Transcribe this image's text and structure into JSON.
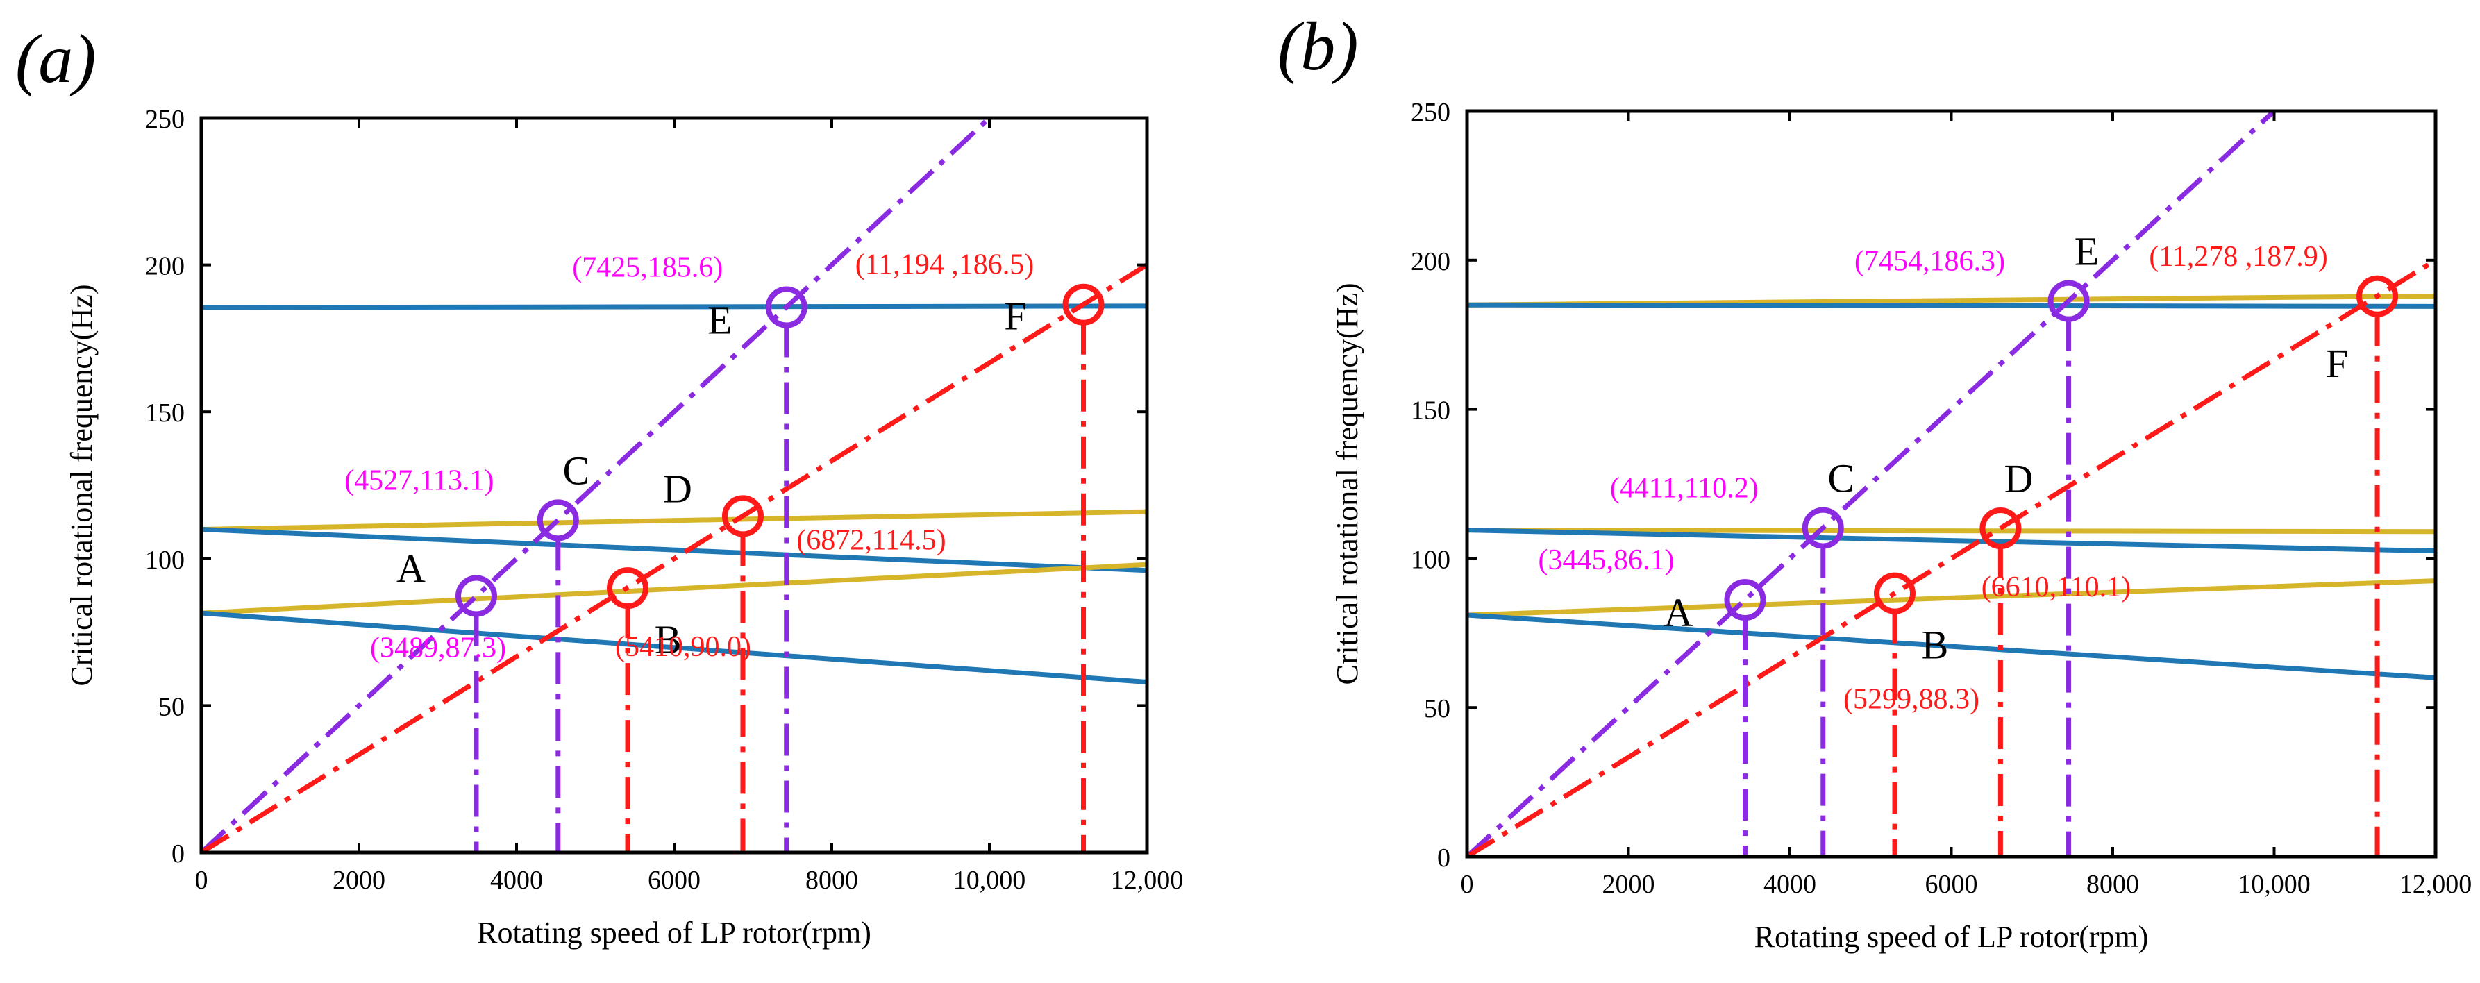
{
  "colors": {
    "blue": "#1f77b4",
    "gold": "#d6b52a",
    "purple": "#8a2be2",
    "red": "#ff1a1a",
    "magenta": "#ff00ff",
    "axis": "#000000"
  },
  "chart_data": [
    {
      "panel_label": "(a)",
      "type": "line",
      "xlabel": "Rotating speed of LP rotor(rpm)",
      "ylabel": "Critical rotational frequency(Hz)",
      "xlim": [
        0,
        12000
      ],
      "ylim": [
        0,
        250
      ],
      "xticks": [
        0,
        2000,
        4000,
        6000,
        8000,
        10000,
        12000
      ],
      "xtick_labels": [
        "0",
        "2000",
        "4000",
        "6000",
        "8000",
        "10,000",
        "12,000"
      ],
      "yticks": [
        0,
        50,
        100,
        150,
        200,
        250
      ],
      "ytick_labels": [
        "0",
        "50",
        "100",
        "150",
        "200",
        "250"
      ],
      "grid": false,
      "series": [
        {
          "color": "blue",
          "style": "solid",
          "x": [
            0,
            12000
          ],
          "y": [
            185.5,
            186.0
          ]
        },
        {
          "color": "gold",
          "style": "solid",
          "x": [
            0,
            12000
          ],
          "y": [
            110.0,
            116.0
          ]
        },
        {
          "color": "blue",
          "style": "solid",
          "x": [
            0,
            12000
          ],
          "y": [
            110.0,
            96.0
          ]
        },
        {
          "color": "gold",
          "style": "solid",
          "x": [
            0,
            12000
          ],
          "y": [
            81.5,
            98.0
          ]
        },
        {
          "color": "blue",
          "style": "solid",
          "x": [
            0,
            12000
          ],
          "y": [
            81.5,
            58.0
          ]
        },
        {
          "color": "purple",
          "style": "dashdot",
          "x": [
            0,
            10000
          ],
          "y": [
            0,
            250
          ]
        },
        {
          "color": "red",
          "style": "dashdot",
          "x": [
            0,
            12000
          ],
          "y": [
            0,
            200
          ]
        }
      ],
      "points": [
        {
          "letter": "A",
          "x": 3489,
          "y": 87.3,
          "ring": "purple",
          "text": "(3489,87.3)",
          "text_color": "magenta",
          "letter_pos": "upper-left",
          "text_pos": "below-left"
        },
        {
          "letter": "B",
          "x": 5410,
          "y": 90.0,
          "ring": "red",
          "text": "(5410,90.0)",
          "text_color": "red",
          "letter_pos": "lower-right",
          "text_pos": "below-right"
        },
        {
          "letter": "C",
          "x": 4527,
          "y": 113.1,
          "ring": "purple",
          "text": "(4527,113.1)",
          "text_color": "magenta",
          "letter_pos": "above",
          "text_pos": "upper-left"
        },
        {
          "letter": "D",
          "x": 6872,
          "y": 114.5,
          "ring": "red",
          "text": "(6872,114.5)",
          "text_color": "red",
          "letter_pos": "upper-left",
          "text_pos": "lower-right"
        },
        {
          "letter": "E",
          "x": 7425,
          "y": 185.6,
          "ring": "purple",
          "text": "(7425,185.6)",
          "text_color": "magenta",
          "letter_pos": "lower-left",
          "text_pos": "upper-left"
        },
        {
          "letter": "F",
          "x": 11194,
          "y": 186.5,
          "ring": "red",
          "text": "(11,194 ,186.5)",
          "text_color": "red",
          "letter_pos": "left",
          "text_pos": "upper-left"
        }
      ]
    },
    {
      "panel_label": "(b)",
      "type": "line",
      "xlabel": "Rotating speed of LP rotor(rpm)",
      "ylabel": "Critical rotational frequency(Hz)",
      "xlim": [
        0,
        12000
      ],
      "ylim": [
        0,
        250
      ],
      "xticks": [
        0,
        2000,
        4000,
        6000,
        8000,
        10000,
        12000
      ],
      "xtick_labels": [
        "0",
        "2000",
        "4000",
        "6000",
        "8000",
        "10,000",
        "12,000"
      ],
      "yticks": [
        0,
        50,
        100,
        150,
        200,
        250
      ],
      "ytick_labels": [
        "0",
        "50",
        "100",
        "150",
        "200",
        "250"
      ],
      "grid": false,
      "series": [
        {
          "color": "gold",
          "style": "solid",
          "x": [
            0,
            12000
          ],
          "y": [
            185.0,
            188.0
          ]
        },
        {
          "color": "blue",
          "style": "solid",
          "x": [
            0,
            12000
          ],
          "y": [
            185.0,
            184.5
          ]
        },
        {
          "color": "gold",
          "style": "solid",
          "x": [
            0,
            12000
          ],
          "y": [
            109.5,
            109.0
          ]
        },
        {
          "color": "blue",
          "style": "solid",
          "x": [
            0,
            12000
          ],
          "y": [
            109.5,
            102.5
          ]
        },
        {
          "color": "gold",
          "style": "solid",
          "x": [
            0,
            12000
          ],
          "y": [
            81.0,
            92.5
          ]
        },
        {
          "color": "blue",
          "style": "solid",
          "x": [
            0,
            12000
          ],
          "y": [
            81.0,
            60.0
          ]
        },
        {
          "color": "purple",
          "style": "dashdot",
          "x": [
            0,
            10000
          ],
          "y": [
            0,
            250
          ]
        },
        {
          "color": "red",
          "style": "dashdot",
          "x": [
            0,
            12000
          ],
          "y": [
            0,
            200
          ]
        }
      ],
      "points": [
        {
          "letter": "A",
          "x": 3445,
          "y": 86.1,
          "ring": "purple",
          "text": "(3445,86.1)",
          "text_color": "magenta",
          "letter_pos": "lower-left",
          "text_pos": "upper-left"
        },
        {
          "letter": "B",
          "x": 5299,
          "y": 88.3,
          "ring": "red",
          "text": "(5299,88.3)",
          "text_color": "red",
          "letter_pos": "lower-right",
          "text_pos": "below"
        },
        {
          "letter": "C",
          "x": 4411,
          "y": 110.2,
          "ring": "purple",
          "text": "(4411,110.2)",
          "text_color": "magenta",
          "letter_pos": "above",
          "text_pos": "upper-left"
        },
        {
          "letter": "D",
          "x": 6610,
          "y": 110.1,
          "ring": "red",
          "text": "(6610,110.1)",
          "text_color": "red",
          "letter_pos": "above",
          "text_pos": "below-right"
        },
        {
          "letter": "E",
          "x": 7454,
          "y": 186.3,
          "ring": "purple",
          "text": "(7454,186.3)",
          "text_color": "magenta",
          "letter_pos": "above",
          "text_pos": "upper-left"
        },
        {
          "letter": "F",
          "x": 11278,
          "y": 187.9,
          "ring": "red",
          "text": "(11,278 ,187.9)",
          "text_color": "red",
          "letter_pos": "below-left",
          "text_pos": "upper-left"
        }
      ]
    }
  ]
}
